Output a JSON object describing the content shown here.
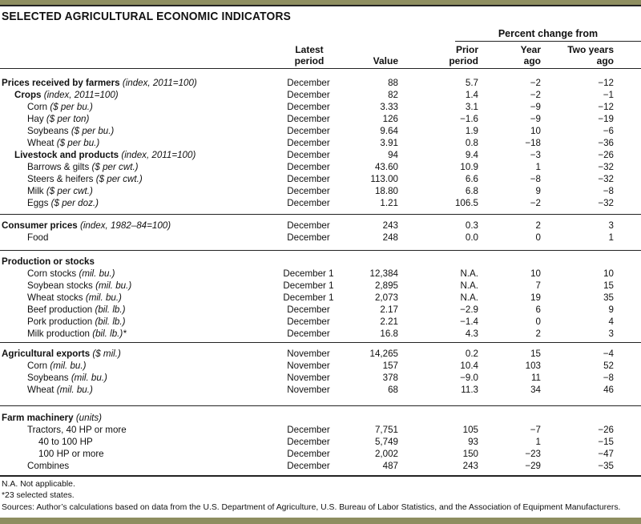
{
  "title": "SELECTED AGRICULTURAL ECONOMIC INDICATORS",
  "colors": {
    "accent_bar": "#8e8e60",
    "rule": "#222222"
  },
  "header": {
    "percent_change": "Percent change from",
    "latest": [
      "Latest",
      "period"
    ],
    "value": "Value",
    "prior": [
      "Prior",
      "period"
    ],
    "year": [
      "Year",
      "ago"
    ],
    "two": [
      "Two years",
      "ago"
    ]
  },
  "sections": [
    {
      "rows": [
        {
          "label": "Prices received by farmers",
          "unit": "(index, 2011=100)",
          "level": 0,
          "bold": true,
          "period": "December",
          "value": "88",
          "prior": "5.7",
          "year": "−2",
          "two": "−12"
        },
        {
          "label": "Crops",
          "unit": "(index, 2011=100)",
          "level": 1,
          "bold": true,
          "period": "December",
          "value": "82",
          "prior": "1.4",
          "year": "−2",
          "two": "−1"
        },
        {
          "label": "Corn",
          "unit": "($ per bu.)",
          "level": 2,
          "bold": false,
          "period": "December",
          "value": "3.33",
          "prior": "3.1",
          "year": "−9",
          "two": "−12"
        },
        {
          "label": "Hay",
          "unit": "($ per ton)",
          "level": 2,
          "bold": false,
          "period": "December",
          "value": "126",
          "prior": "−1.6",
          "year": "−9",
          "two": "−19"
        },
        {
          "label": "Soybeans",
          "unit": "($ per bu.)",
          "level": 2,
          "bold": false,
          "period": "December",
          "value": "9.64",
          "prior": "1.9",
          "year": "10",
          "two": "−6"
        },
        {
          "label": "Wheat",
          "unit": "($ per bu.)",
          "level": 2,
          "bold": false,
          "period": "December",
          "value": "3.91",
          "prior": "0.8",
          "year": "−18",
          "two": "−36"
        },
        {
          "label": "Livestock and products",
          "unit": "(index, 2011=100)",
          "level": 1,
          "bold": true,
          "period": "December",
          "value": "94",
          "prior": "9.4",
          "year": "−3",
          "two": "−26"
        },
        {
          "label": "Barrows & gilts",
          "unit": "($ per cwt.)",
          "level": 2,
          "bold": false,
          "period": "December",
          "value": "43.60",
          "prior": "10.9",
          "year": "1",
          "two": "−32"
        },
        {
          "label": "Steers & heifers",
          "unit": "($ per cwt.)",
          "level": 2,
          "bold": false,
          "period": "December",
          "value": "113.00",
          "prior": "6.6",
          "year": "−8",
          "two": "−32"
        },
        {
          "label": "Milk",
          "unit": "($ per cwt.)",
          "level": 2,
          "bold": false,
          "period": "December",
          "value": "18.80",
          "prior": "6.8",
          "year": "9",
          "two": "−8"
        },
        {
          "label": "Eggs",
          "unit": "($ per doz.)",
          "level": 2,
          "bold": false,
          "period": "December",
          "value": "1.21",
          "prior": "106.5",
          "year": "−2",
          "two": "−32"
        }
      ]
    },
    {
      "rows": [
        {
          "label": "Consumer prices",
          "unit": "(index, 1982–84=100)",
          "level": 0,
          "bold": true,
          "period": "December",
          "value": "243",
          "prior": "0.3",
          "year": "2",
          "two": "3"
        },
        {
          "label": "Food",
          "unit": "",
          "level": 2,
          "bold": false,
          "period": "December",
          "value": "248",
          "prior": "0.0",
          "year": "0",
          "two": "1"
        }
      ]
    },
    {
      "rows": [
        {
          "label": "Production or stocks",
          "unit": "",
          "level": 0,
          "bold": true,
          "period": "",
          "value": "",
          "prior": "",
          "year": "",
          "two": ""
        },
        {
          "label": "Corn stocks",
          "unit": "(mil. bu.)",
          "level": 2,
          "bold": false,
          "period": "December 1",
          "value": "12,384",
          "prior": "N.A.",
          "year": "10",
          "two": "10"
        },
        {
          "label": "Soybean stocks",
          "unit": "(mil. bu.)",
          "level": 2,
          "bold": false,
          "period": "December 1",
          "value": "2,895",
          "prior": "N.A.",
          "year": "7",
          "two": "15"
        },
        {
          "label": "Wheat stocks",
          "unit": "(mil. bu.)",
          "level": 2,
          "bold": false,
          "period": "December 1",
          "value": "2,073",
          "prior": "N.A.",
          "year": "19",
          "two": "35"
        },
        {
          "label": "Beef production",
          "unit": "(bil. lb.)",
          "level": 2,
          "bold": false,
          "period": "December",
          "value": "2.17",
          "prior": "−2.9",
          "year": "6",
          "two": "9"
        },
        {
          "label": "Pork production",
          "unit": "(bil. lb.)",
          "level": 2,
          "bold": false,
          "period": "December",
          "value": "2.21",
          "prior": "−1.4",
          "year": "0",
          "two": "4"
        },
        {
          "label": "Milk production",
          "unit": "(bil. lb.)*",
          "level": 2,
          "bold": false,
          "period": "December",
          "value": "16.8",
          "prior": "4.3",
          "year": "2",
          "two": "3"
        }
      ]
    },
    {
      "rows": [
        {
          "label": "Agricultural exports",
          "unit": "($ mil.)",
          "level": 0,
          "bold": true,
          "period": "November",
          "value": "14,265",
          "prior": "0.2",
          "year": "15",
          "two": "−4"
        },
        {
          "label": "Corn",
          "unit": "(mil. bu.)",
          "level": 2,
          "bold": false,
          "period": "November",
          "value": "157",
          "prior": "10.4",
          "year": "103",
          "two": "52"
        },
        {
          "label": "Soybeans",
          "unit": "(mil. bu.)",
          "level": 2,
          "bold": false,
          "period": "November",
          "value": "378",
          "prior": "−9.0",
          "year": "11",
          "two": "−8"
        },
        {
          "label": "Wheat",
          "unit": "(mil. bu.)",
          "level": 2,
          "bold": false,
          "period": "November",
          "value": "68",
          "prior": "11.3",
          "year": "34",
          "two": "46"
        }
      ]
    },
    {
      "rows": [
        {
          "label": "Farm machinery",
          "unit": "(units)",
          "level": 0,
          "bold": true,
          "period": "",
          "value": "",
          "prior": "",
          "year": "",
          "two": ""
        },
        {
          "label": "Tractors, 40 HP or more",
          "unit": "",
          "level": 2,
          "bold": false,
          "period": "December",
          "value": "7,751",
          "prior": "105",
          "year": "−7",
          "two": "−26"
        },
        {
          "label": "40 to 100 HP",
          "unit": "",
          "level": 3,
          "bold": false,
          "period": "December",
          "value": "5,749",
          "prior": "93",
          "year": "1",
          "two": "−15"
        },
        {
          "label": "100 HP or more",
          "unit": "",
          "level": 3,
          "bold": false,
          "period": "December",
          "value": "2,002",
          "prior": "150",
          "year": "−23",
          "two": "−47"
        },
        {
          "label": "Combines",
          "unit": "",
          "level": 2,
          "bold": false,
          "period": "December",
          "value": "487",
          "prior": "243",
          "year": "−29",
          "two": "−35"
        }
      ]
    }
  ],
  "notes": [
    "N.A. Not applicable.",
    "*23 selected states.",
    "Sources: Author’s calculations based on data from the U.S. Department of Agriculture, U.S. Bureau of Labor Statistics, and the Association of Equipment Manufacturers."
  ]
}
